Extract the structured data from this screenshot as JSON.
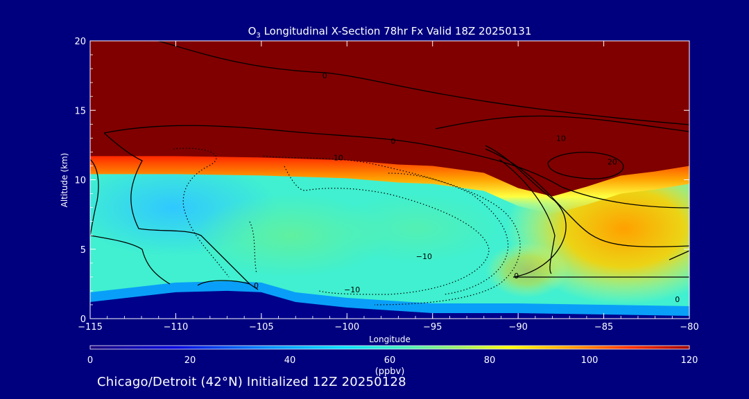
{
  "title": {
    "species": "O",
    "subscript": "3",
    "rest": " Longitudinal X-Section 78hr  Fx Valid 18Z 20250131"
  },
  "footer": "Chicago/Detroit (42°N) Initialized 12Z 20250128",
  "colors": {
    "background": "#00007f",
    "stratosphere": "#800000",
    "ground": "#00008b"
  },
  "chart_data": {
    "type": "heatmap",
    "title": "O3 Longitudinal X-Section 78hr  Fx Valid 18Z 20250131",
    "xlabel": "Longitude",
    "ylabel": "Altitude (km)",
    "xlim": [
      -115,
      -80
    ],
    "ylim": [
      0,
      20
    ],
    "x_ticks": [
      -115,
      -110,
      -105,
      -100,
      -95,
      -90,
      -85,
      -80
    ],
    "x_tick_labels": [
      "−115",
      "−110",
      "−105",
      "−100",
      "−95",
      "−90",
      "−85",
      "−80"
    ],
    "y_ticks": [
      0,
      5,
      10,
      15,
      20
    ],
    "y_tick_labels": [
      "0",
      "5",
      "10",
      "15",
      "20"
    ],
    "colorbar": {
      "label": "(ppbv)",
      "min": 0,
      "max": 120,
      "ticks": [
        0,
        20,
        40,
        60,
        80,
        100,
        120
      ],
      "tick_labels": [
        "0",
        "20",
        "40",
        "60",
        "80",
        "100",
        "120"
      ]
    },
    "tropopause_height_km": [
      [
        -115,
        11.7
      ],
      [
        -110,
        11.7
      ],
      [
        -105,
        11.6
      ],
      [
        -100,
        11.4
      ],
      [
        -97,
        11.1
      ],
      [
        -95,
        11.0
      ],
      [
        -92,
        10.5
      ],
      [
        -90,
        9.4
      ],
      [
        -88,
        8.8
      ],
      [
        -86,
        9.5
      ],
      [
        -84,
        10.3
      ],
      [
        -82,
        10.6
      ],
      [
        -80,
        11.0
      ]
    ],
    "terrain_height_km": [
      [
        -115,
        1.2
      ],
      [
        -110,
        1.9
      ],
      [
        -107,
        2.0
      ],
      [
        -105,
        1.9
      ],
      [
        -103,
        1.2
      ],
      [
        -100,
        0.8
      ],
      [
        -95,
        0.4
      ],
      [
        -90,
        0.4
      ],
      [
        -85,
        0.3
      ],
      [
        -80,
        0.2
      ]
    ],
    "contour_labels": [
      {
        "text": "0",
        "lon": -101.3,
        "alt": 17.3
      },
      {
        "text": "0",
        "lon": -97.3,
        "alt": 12.6
      },
      {
        "text": "0",
        "lon": -79.3,
        "alt": 13.9
      },
      {
        "text": "10",
        "lon": -100.5,
        "alt": 11.4
      },
      {
        "text": "10",
        "lon": -87.5,
        "alt": 12.8
      },
      {
        "text": "20",
        "lon": -84.5,
        "alt": 11.1
      },
      {
        "text": "0",
        "lon": -105.3,
        "alt": 2.2
      },
      {
        "text": "−10",
        "lon": -95.5,
        "alt": 4.3
      },
      {
        "text": "−10",
        "lon": -99.7,
        "alt": 1.9
      },
      {
        "text": "0",
        "lon": -90.1,
        "alt": 2.9
      },
      {
        "text": "0",
        "lon": -80.7,
        "alt": 1.2
      }
    ]
  }
}
